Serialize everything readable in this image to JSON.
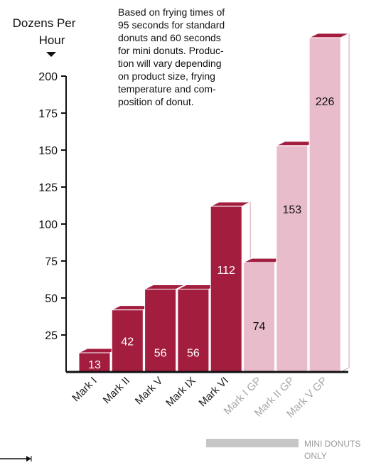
{
  "chart_data": {
    "type": "bar",
    "title": "",
    "ylabel_lines": [
      "Dozens Per",
      "Hour"
    ],
    "ylabel_arrow_icon": "down-triangle-icon",
    "note_lines": [
      "Based on frying times of",
      "95 seconds for standard",
      "donuts and 60 seconds",
      "for mini donuts. Produc-",
      "tion will vary depending",
      "on product size, frying",
      "temperature and com-",
      "position of donut."
    ],
    "yticks": [
      25,
      50,
      75,
      100,
      125,
      150,
      175,
      200
    ],
    "ylim": [
      0,
      250
    ],
    "grid": false,
    "categories": [
      "Mark I",
      "Mark II",
      "Mark V",
      "Mark IX",
      "Mark VI",
      "Mark I GP",
      "Mark II GP",
      "Mark V GP"
    ],
    "values": [
      13,
      42,
      56,
      56,
      112,
      74,
      153,
      226
    ],
    "group": [
      "standard",
      "standard",
      "standard",
      "standard",
      "standard",
      "mini",
      "mini",
      "mini"
    ],
    "legend": {
      "label_lines": [
        "MINI DONUTS",
        "ONLY"
      ],
      "placement": "bottom-right"
    },
    "colors": {
      "standard_front": "#a31d3f",
      "standard_top": "#a31d3f",
      "standard_side": "#ffffff",
      "mini_front": "#e8bccb",
      "mini_top": "#a31d3f",
      "mini_side": "#ffffff",
      "standard_label": "#222222",
      "mini_label": "#a8a8a8",
      "legend_swatch": "#c6c6c6",
      "legend_text": "#9a9a9a",
      "axis": "#111111",
      "value_text_standard": "#ffffff",
      "value_text_mini": "#111111"
    }
  }
}
